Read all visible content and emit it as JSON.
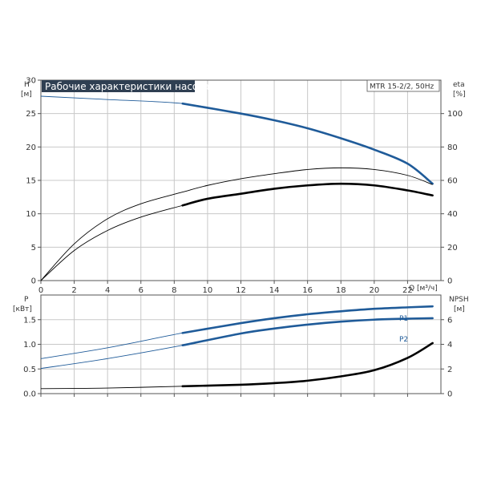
{
  "title": "Рабочие характеристики насоса",
  "model": "MTR 15-2/2, 50Hz",
  "colors": {
    "blue": "#1f5b99",
    "black": "#000000",
    "title_bg": "#2f3f52",
    "grid": "#c8c8c8"
  },
  "chart_data": [
    {
      "type": "line",
      "x_axis": {
        "label": "Q [м³/ч]",
        "range": [
          0,
          24
        ],
        "ticks": [
          0,
          2,
          4,
          6,
          8,
          10,
          12,
          14,
          16,
          18,
          20,
          22
        ]
      },
      "y_left": {
        "label_top": "H",
        "label_unit": "[м]",
        "range": [
          0,
          30
        ],
        "ticks": [
          0,
          5,
          10,
          15,
          20,
          25,
          30
        ]
      },
      "y_right": {
        "label_top": "eta",
        "label_unit": "[%]",
        "range": [
          0,
          120
        ],
        "ticks": [
          0,
          20,
          40,
          60,
          80,
          100
        ]
      },
      "grid": true,
      "series": [
        {
          "key": "H",
          "axis": "left",
          "color": "blue",
          "points": [
            [
              0,
              27.6
            ],
            [
              4,
              27.1
            ],
            [
              8.5,
              26.5
            ],
            [
              12,
              25.0
            ],
            [
              14,
              24.0
            ],
            [
              16,
              22.8
            ],
            [
              18,
              21.3
            ],
            [
              20,
              19.6
            ],
            [
              22,
              17.5
            ],
            [
              23.5,
              14.5
            ]
          ]
        },
        {
          "key": "eta_low",
          "axis": "right",
          "color": "black",
          "width": 0.9,
          "points": [
            [
              0,
              0
            ],
            [
              2,
              18
            ],
            [
              4,
              30
            ],
            [
              6,
              38
            ],
            [
              8.5,
              45
            ],
            [
              10,
              49
            ],
            [
              12,
              52
            ],
            [
              14,
              55
            ],
            [
              16,
              57
            ],
            [
              18,
              58
            ],
            [
              20,
              57
            ],
            [
              22,
              54
            ],
            [
              23.5,
              51
            ]
          ]
        },
        {
          "key": "eta_high",
          "axis": "right",
          "color": "black",
          "width": 0.9,
          "points": [
            [
              0,
              0
            ],
            [
              2,
              22
            ],
            [
              4,
              37
            ],
            [
              6,
              46
            ],
            [
              8.5,
              53
            ],
            [
              10,
              57
            ],
            [
              12,
              61
            ],
            [
              14,
              64
            ],
            [
              16,
              66.5
            ],
            [
              18,
              67.5
            ],
            [
              20,
              66.5
            ],
            [
              22,
              63
            ],
            [
              23.5,
              57.5
            ]
          ]
        }
      ],
      "thick_from": 8.5
    },
    {
      "type": "line",
      "x_axis": {
        "range": [
          0,
          24
        ],
        "ticks": [
          0,
          2,
          4,
          6,
          8,
          10,
          12,
          14,
          16,
          18,
          20,
          22
        ]
      },
      "y_left": {
        "label_top": "P",
        "label_unit": "[кВт]",
        "range": [
          0,
          2
        ],
        "ticks": [
          0.0,
          0.5,
          1.0,
          1.5
        ],
        "tick_labels": [
          "0.0",
          "0.5",
          "1.0",
          "1.5"
        ]
      },
      "y_right": {
        "label_top": "NPSH",
        "label_unit": "[м]",
        "range": [
          0,
          8
        ],
        "ticks": [
          0,
          2,
          4,
          6
        ]
      },
      "grid": true,
      "series": [
        {
          "key": "P1",
          "name": "P1",
          "axis": "left",
          "color": "blue",
          "points": [
            [
              0,
              0.71
            ],
            [
              4,
              0.93
            ],
            [
              8.5,
              1.23
            ],
            [
              12,
              1.43
            ],
            [
              14,
              1.53
            ],
            [
              16,
              1.61
            ],
            [
              18,
              1.67
            ],
            [
              20,
              1.72
            ],
            [
              22,
              1.75
            ],
            [
              23.5,
              1.77
            ]
          ]
        },
        {
          "key": "P2",
          "name": "P2",
          "axis": "left",
          "color": "blue",
          "points": [
            [
              0,
              0.51
            ],
            [
              4,
              0.71
            ],
            [
              8.5,
              0.98
            ],
            [
              12,
              1.22
            ],
            [
              14,
              1.32
            ],
            [
              16,
              1.4
            ],
            [
              18,
              1.46
            ],
            [
              20,
              1.5
            ],
            [
              22,
              1.52
            ],
            [
              23.5,
              1.53
            ]
          ]
        },
        {
          "key": "NPSH",
          "axis": "right",
          "color": "black",
          "points": [
            [
              0,
              0.4
            ],
            [
              4,
              0.45
            ],
            [
              8.5,
              0.6
            ],
            [
              12,
              0.72
            ],
            [
              14,
              0.85
            ],
            [
              16,
              1.05
            ],
            [
              18,
              1.4
            ],
            [
              20,
              1.9
            ],
            [
              22,
              2.9
            ],
            [
              23.5,
              4.1
            ]
          ]
        }
      ],
      "thick_from": 8.5
    }
  ]
}
